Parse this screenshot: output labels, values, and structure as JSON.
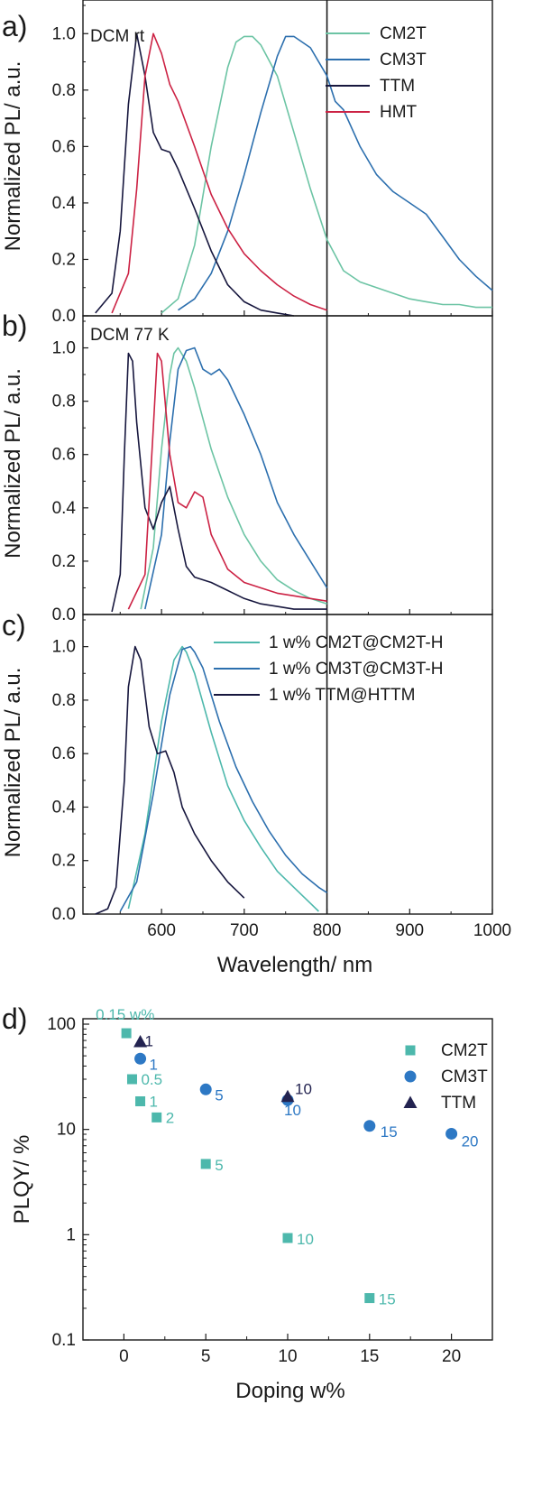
{
  "colors": {
    "CM2T": "#6cc4a4",
    "CM3T": "#2c6fae",
    "TTM": "#17173e",
    "HMT": "#cc2244",
    "CM2T_pts": "#4db8ac",
    "CM3T_pts": "#2d78c4",
    "TTM_pts": "#232350",
    "axis": "#1a1a1a"
  },
  "chart_data": [
    {
      "panel": "a)",
      "type": "line",
      "annotation": "DCM rt",
      "ylabel": "Normalized PL/ a.u.",
      "xlim": [
        505,
        1000
      ],
      "ylim": [
        0,
        1.1
      ],
      "yticks": [
        "0.0",
        "0.2",
        "0.4",
        "0.6",
        "0.8",
        "1.0"
      ],
      "legend": [
        "CM2T",
        "CM3T",
        "TTM",
        "HMT"
      ],
      "series": [
        {
          "name": "CM2T",
          "x": [
            600,
            620,
            640,
            660,
            680,
            690,
            700,
            710,
            720,
            740,
            760,
            780,
            800,
            820,
            840,
            860,
            880,
            900,
            920,
            940,
            960,
            980,
            1000
          ],
          "y": [
            0.01,
            0.06,
            0.25,
            0.6,
            0.88,
            0.97,
            0.99,
            0.99,
            0.96,
            0.85,
            0.65,
            0.45,
            0.27,
            0.16,
            0.12,
            0.1,
            0.08,
            0.06,
            0.05,
            0.04,
            0.04,
            0.03,
            0.03
          ]
        },
        {
          "name": "CM3T",
          "x": [
            620,
            640,
            660,
            680,
            700,
            720,
            740,
            750,
            760,
            780,
            800,
            810,
            820,
            840,
            860,
            880,
            900,
            920,
            940,
            960,
            980,
            1000
          ],
          "y": [
            0.02,
            0.06,
            0.15,
            0.3,
            0.5,
            0.72,
            0.92,
            0.99,
            0.99,
            0.95,
            0.85,
            0.76,
            0.73,
            0.6,
            0.5,
            0.44,
            0.4,
            0.36,
            0.28,
            0.2,
            0.14,
            0.09
          ]
        },
        {
          "name": "TTM",
          "x": [
            520,
            540,
            550,
            560,
            570,
            580,
            590,
            600,
            610,
            620,
            640,
            660,
            680,
            700,
            720,
            740,
            760
          ],
          "y": [
            0.01,
            0.08,
            0.3,
            0.75,
            1.0,
            0.85,
            0.65,
            0.59,
            0.58,
            0.52,
            0.38,
            0.23,
            0.11,
            0.05,
            0.02,
            0.01,
            0.0
          ]
        },
        {
          "name": "HMT",
          "x": [
            540,
            560,
            570,
            580,
            590,
            600,
            610,
            620,
            640,
            660,
            680,
            700,
            720,
            740,
            760,
            780,
            800
          ],
          "y": [
            0.01,
            0.15,
            0.45,
            0.85,
            1.0,
            0.93,
            0.82,
            0.76,
            0.6,
            0.43,
            0.31,
            0.22,
            0.16,
            0.11,
            0.07,
            0.04,
            0.02
          ]
        }
      ]
    },
    {
      "panel": "b)",
      "type": "line",
      "annotation": "DCM 77 K",
      "ylabel": "Normalized PL/ a.u.",
      "xlim": [
        505,
        1000
      ],
      "ylim": [
        0,
        1.1
      ],
      "yticks": [
        "0.0",
        "0.2",
        "0.4",
        "0.6",
        "0.8",
        "1.0"
      ],
      "series": [
        {
          "name": "CM2T",
          "x": [
            575,
            590,
            600,
            610,
            615,
            620,
            630,
            640,
            660,
            680,
            700,
            720,
            740,
            760,
            780,
            800
          ],
          "y": [
            0.02,
            0.25,
            0.62,
            0.9,
            0.98,
            1.0,
            0.95,
            0.85,
            0.62,
            0.44,
            0.3,
            0.2,
            0.13,
            0.09,
            0.06,
            0.04
          ]
        },
        {
          "name": "CM3T",
          "x": [
            580,
            600,
            610,
            620,
            630,
            640,
            650,
            660,
            670,
            680,
            700,
            720,
            740,
            760,
            780,
            800
          ],
          "y": [
            0.02,
            0.3,
            0.65,
            0.92,
            0.99,
            1.0,
            0.92,
            0.9,
            0.92,
            0.88,
            0.75,
            0.6,
            0.42,
            0.3,
            0.2,
            0.1
          ]
        },
        {
          "name": "TTM",
          "x": [
            540,
            550,
            555,
            560,
            565,
            570,
            580,
            590,
            600,
            610,
            620,
            630,
            640,
            660,
            680,
            700,
            720,
            740,
            760,
            780,
            800
          ],
          "y": [
            0.01,
            0.15,
            0.6,
            0.98,
            0.95,
            0.72,
            0.4,
            0.32,
            0.42,
            0.48,
            0.32,
            0.18,
            0.14,
            0.12,
            0.09,
            0.06,
            0.04,
            0.03,
            0.02,
            0.02,
            0.02
          ]
        },
        {
          "name": "HMT",
          "x": [
            560,
            580,
            590,
            595,
            600,
            610,
            620,
            630,
            640,
            650,
            660,
            680,
            700,
            720,
            740,
            760,
            780,
            800
          ],
          "y": [
            0.02,
            0.15,
            0.7,
            0.98,
            0.95,
            0.6,
            0.42,
            0.4,
            0.46,
            0.44,
            0.3,
            0.17,
            0.12,
            0.1,
            0.08,
            0.07,
            0.06,
            0.05
          ]
        }
      ]
    },
    {
      "panel": "c)",
      "type": "line",
      "ylabel": "Normalized PL/ a.u.",
      "xlabel": "Wavelength/ nm",
      "xlim": [
        505,
        1000
      ],
      "ylim": [
        0,
        1.1
      ],
      "yticks": [
        "0.0",
        "0.2",
        "0.4",
        "0.6",
        "0.8",
        "1.0"
      ],
      "xticks": [
        "600",
        "700",
        "800",
        "900",
        "1000"
      ],
      "legend": [
        "1 w% CM2T@CM2T-H",
        "1 w% CM3T@CM3T-H",
        "1 w% TTM@HTTM"
      ],
      "series": [
        {
          "name": "1 w% CM2T@CM2T-H",
          "x": [
            560,
            580,
            600,
            615,
            625,
            630,
            640,
            660,
            680,
            700,
            720,
            740,
            760,
            780,
            790
          ],
          "y": [
            0.02,
            0.3,
            0.72,
            0.95,
            1.0,
            0.98,
            0.9,
            0.68,
            0.48,
            0.35,
            0.25,
            0.16,
            0.1,
            0.04,
            0.01
          ]
        },
        {
          "name": "1 w% CM3T@CM3T-H",
          "x": [
            550,
            570,
            590,
            610,
            625,
            635,
            640,
            650,
            670,
            690,
            710,
            730,
            750,
            770,
            790,
            800
          ],
          "y": [
            0.01,
            0.12,
            0.45,
            0.82,
            0.99,
            1.0,
            0.98,
            0.92,
            0.72,
            0.55,
            0.42,
            0.31,
            0.22,
            0.15,
            0.1,
            0.08
          ]
        },
        {
          "name": "1 w% TTM@HTTM",
          "x": [
            520,
            535,
            545,
            555,
            560,
            568,
            575,
            585,
            595,
            605,
            615,
            625,
            640,
            660,
            680,
            700
          ],
          "y": [
            0.0,
            0.02,
            0.1,
            0.5,
            0.85,
            1.0,
            0.95,
            0.7,
            0.6,
            0.61,
            0.53,
            0.4,
            0.3,
            0.2,
            0.12,
            0.06
          ]
        }
      ]
    },
    {
      "panel": "d)",
      "type": "scatter",
      "yscale": "log",
      "xlabel": "Doping w%",
      "ylabel": "PLQY/ %",
      "xlim": [
        -2.5,
        22.5
      ],
      "ylim": [
        0.1,
        100
      ],
      "xticks": [
        "0",
        "5",
        "10",
        "15",
        "20"
      ],
      "yticks": [
        "0.1",
        "1",
        "10",
        "100"
      ],
      "legend": [
        "CM2T",
        "CM3T",
        "TTM"
      ],
      "series": [
        {
          "name": "CM2T",
          "marker": "square",
          "x": [
            0.15,
            0.5,
            1,
            2,
            5,
            10,
            15
          ],
          "y": [
            82,
            30,
            18.5,
            13,
            4.7,
            0.93,
            0.25
          ],
          "labels": [
            "0.15 w%",
            "0.5",
            "1",
            "2",
            "5",
            "10",
            "15"
          ]
        },
        {
          "name": "CM3T",
          "marker": "circle",
          "x": [
            1,
            5,
            10,
            15,
            20
          ],
          "y": [
            47,
            24,
            19,
            10.8,
            9.1
          ],
          "labels": [
            "1",
            "5",
            "10",
            "15",
            "20"
          ]
        },
        {
          "name": "TTM",
          "marker": "triangle",
          "x": [
            1,
            10
          ],
          "y": [
            68,
            20.5
          ],
          "labels": [
            "1",
            "10"
          ]
        }
      ]
    }
  ]
}
